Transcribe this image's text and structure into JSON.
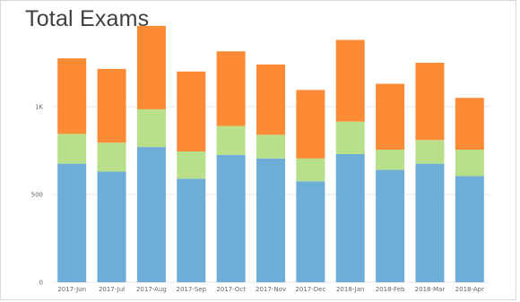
{
  "header": {
    "title": "Total Exams"
  },
  "colors": {
    "base": "#6fadd9",
    "middle": "#b8e08a",
    "top": "#fd8b36"
  },
  "chart_data": {
    "type": "bar",
    "stacked": true,
    "title": "Total Exams",
    "xlabel": "",
    "ylabel": "",
    "ylim": [
      0,
      1500
    ],
    "yticks": [
      {
        "value": 0,
        "label": "0"
      },
      {
        "value": 500,
        "label": "500"
      },
      {
        "value": 1000,
        "label": "1K"
      }
    ],
    "grid": true,
    "categories": [
      "2017-Jun",
      "2017-Jul",
      "2017-Aug",
      "2017-Sep",
      "2017-Oct",
      "2017-Nov",
      "2017-Dec",
      "2018-Jan",
      "2018-Feb",
      "2018-Mar",
      "2018-Apr"
    ],
    "series": [
      {
        "values": [
          675,
          630,
          770,
          590,
          725,
          705,
          575,
          730,
          640,
          675,
          605
        ]
      },
      {
        "values": [
          170,
          165,
          215,
          155,
          165,
          135,
          130,
          185,
          115,
          135,
          150
        ]
      },
      {
        "values": [
          430,
          420,
          475,
          455,
          425,
          400,
          390,
          465,
          375,
          440,
          295
        ]
      }
    ]
  }
}
